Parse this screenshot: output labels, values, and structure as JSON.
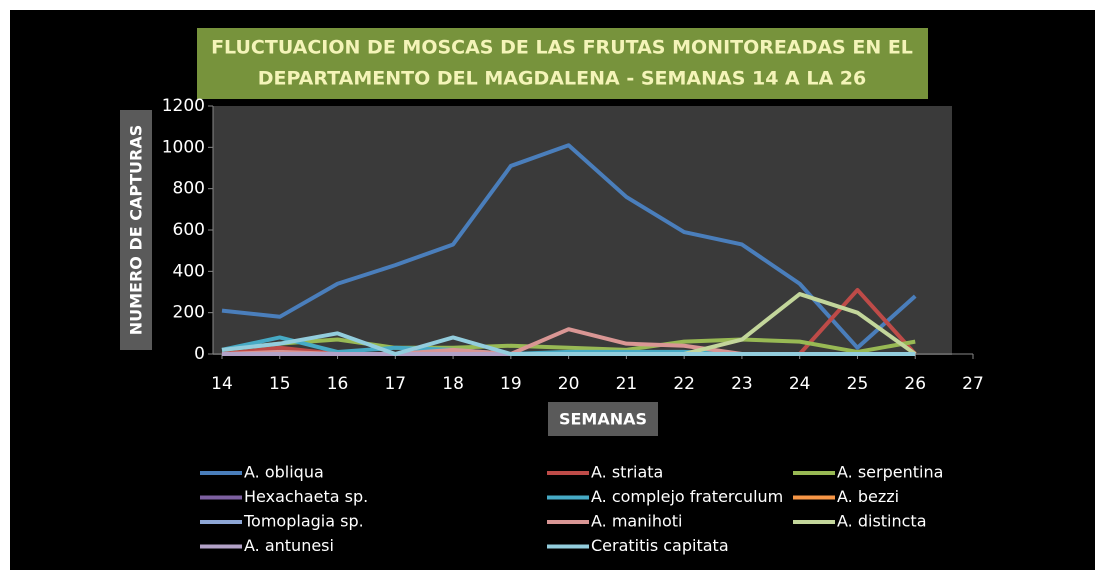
{
  "chart_data": {
    "type": "line",
    "title": [
      "FLUCTUACION DE MOSCAS DE LAS FRUTAS MONITOREADAS EN EL",
      "DEPARTAMENTO DEL MAGDALENA - SEMANAS 14 A LA 26"
    ],
    "x_label": "SEMANAS",
    "y_label": "NUMERO DE CAPTURAS",
    "x": [
      14,
      15,
      16,
      17,
      18,
      19,
      20,
      21,
      22,
      23,
      24,
      25,
      26
    ],
    "xlim": [
      14,
      27
    ],
    "xticks": [
      14,
      15,
      16,
      17,
      18,
      19,
      20,
      21,
      22,
      23,
      24,
      25,
      26,
      27
    ],
    "ylim": [
      0,
      1200
    ],
    "yticks": [
      0,
      200,
      400,
      600,
      800,
      1000,
      1200
    ],
    "grid": false,
    "series": [
      {
        "name": "A. obliqua",
        "color": "#4a7ebb",
        "values": [
          210,
          180,
          340,
          430,
          530,
          910,
          1010,
          760,
          590,
          530,
          340,
          30,
          280
        ]
      },
      {
        "name": "A. striata",
        "color": "#be4b48",
        "values": [
          0,
          30,
          0,
          0,
          0,
          0,
          0,
          0,
          0,
          0,
          0,
          310,
          0
        ]
      },
      {
        "name": "A. serpentina",
        "color": "#98b954",
        "values": [
          20,
          50,
          70,
          30,
          30,
          40,
          30,
          20,
          60,
          70,
          60,
          10,
          60
        ]
      },
      {
        "name": "Hexachaeta sp.",
        "color": "#7d60a0",
        "values": [
          0,
          0,
          0,
          0,
          0,
          0,
          0,
          0,
          0,
          0,
          0,
          0,
          0
        ]
      },
      {
        "name": "A. complejo fraterculum",
        "color": "#46aac5",
        "values": [
          20,
          80,
          10,
          30,
          20,
          0,
          10,
          10,
          10,
          0,
          0,
          0,
          0
        ]
      },
      {
        "name": "A. bezzi",
        "color": "#f79646",
        "values": [
          0,
          0,
          0,
          0,
          0,
          0,
          0,
          0,
          0,
          0,
          0,
          0,
          0
        ]
      },
      {
        "name": "Tomoplagia sp.",
        "color": "#8ea7d6",
        "values": [
          0,
          0,
          0,
          0,
          0,
          0,
          0,
          0,
          0,
          0,
          0,
          0,
          0
        ]
      },
      {
        "name": "A. manihoti",
        "color": "#d99694",
        "values": [
          0,
          10,
          0,
          0,
          20,
          0,
          120,
          50,
          40,
          0,
          0,
          0,
          0
        ]
      },
      {
        "name": "A. distincta",
        "color": "#c3d69b",
        "values": [
          0,
          0,
          0,
          0,
          0,
          0,
          0,
          0,
          0,
          70,
          290,
          200,
          0
        ]
      },
      {
        "name": "A. antunesi",
        "color": "#b3a2c7",
        "values": [
          0,
          0,
          0,
          0,
          0,
          0,
          0,
          0,
          0,
          0,
          0,
          0,
          0
        ]
      },
      {
        "name": "Ceratitis capitata",
        "color": "#93cddd",
        "values": [
          20,
          50,
          100,
          0,
          80,
          0,
          0,
          0,
          0,
          0,
          0,
          0,
          0
        ]
      }
    ]
  }
}
